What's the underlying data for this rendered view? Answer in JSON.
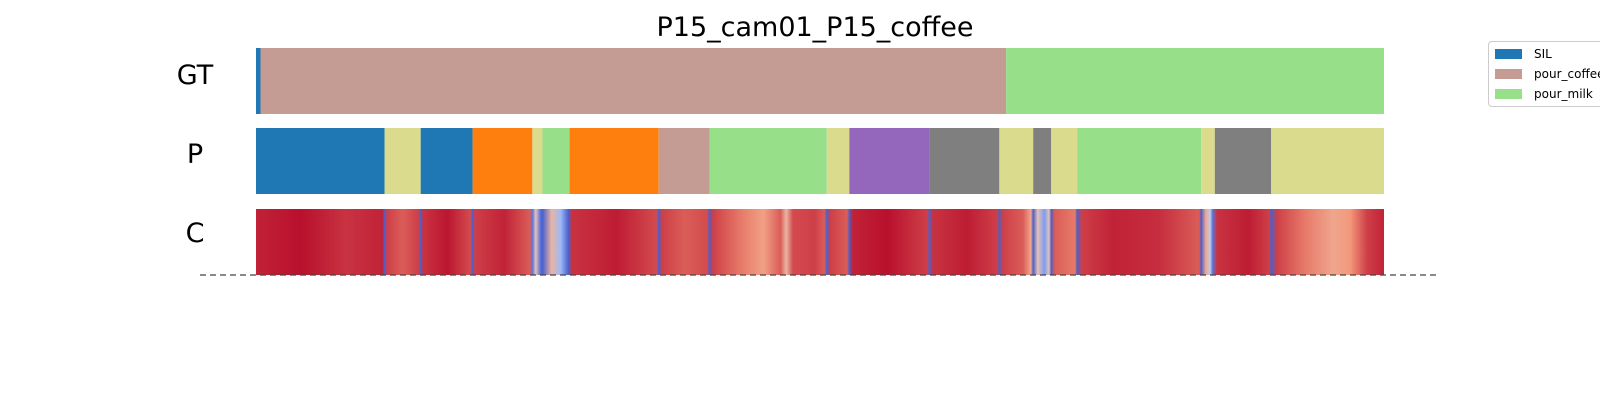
{
  "chart_data": {
    "type": "segmentation",
    "title": "P15_cam01_P15_coffee",
    "total_frames": 1000,
    "rows": [
      {
        "label": "GT",
        "kind": "segments",
        "segments": [
          {
            "label": "SIL",
            "start": 0,
            "end": 4
          },
          {
            "label": "pour_coffee",
            "start": 4,
            "end": 665
          },
          {
            "label": "pour_milk",
            "start": 665,
            "end": 1000
          }
        ]
      },
      {
        "label": "P",
        "kind": "segments",
        "segments": [
          {
            "label": "SIL",
            "start": 0,
            "end": 114
          },
          {
            "label": "olive",
            "start": 114,
            "end": 146
          },
          {
            "label": "SIL",
            "start": 146,
            "end": 192
          },
          {
            "label": "orange",
            "start": 192,
            "end": 245
          },
          {
            "label": "olive",
            "start": 245,
            "end": 254
          },
          {
            "label": "pour_milk",
            "start": 254,
            "end": 278
          },
          {
            "label": "orange",
            "start": 278,
            "end": 357
          },
          {
            "label": "pour_coffee",
            "start": 357,
            "end": 402
          },
          {
            "label": "pour_milk",
            "start": 402,
            "end": 506
          },
          {
            "label": "olive",
            "start": 506,
            "end": 526
          },
          {
            "label": "purple",
            "start": 526,
            "end": 597
          },
          {
            "label": "gray",
            "start": 597,
            "end": 659
          },
          {
            "label": "olive",
            "start": 659,
            "end": 689
          },
          {
            "label": "gray",
            "start": 689,
            "end": 705
          },
          {
            "label": "olive",
            "start": 705,
            "end": 728
          },
          {
            "label": "pour_milk",
            "start": 728,
            "end": 838
          },
          {
            "label": "olive",
            "start": 838,
            "end": 850
          },
          {
            "label": "gray",
            "start": 850,
            "end": 900
          },
          {
            "label": "olive",
            "start": 900,
            "end": 1000
          }
        ]
      },
      {
        "label": "C",
        "kind": "confidence",
        "confidence_stops": [
          {
            "x": 0,
            "v": 0.95
          },
          {
            "x": 40,
            "v": 0.98
          },
          {
            "x": 80,
            "v": 0.92
          },
          {
            "x": 112,
            "v": 0.95
          },
          {
            "x": 114,
            "v": 0.05
          },
          {
            "x": 116,
            "v": 0.9
          },
          {
            "x": 130,
            "v": 0.85
          },
          {
            "x": 144,
            "v": 0.9
          },
          {
            "x": 146,
            "v": 0.05
          },
          {
            "x": 148,
            "v": 0.92
          },
          {
            "x": 170,
            "v": 0.97
          },
          {
            "x": 190,
            "v": 0.88
          },
          {
            "x": 192,
            "v": 0.05
          },
          {
            "x": 194,
            "v": 0.9
          },
          {
            "x": 220,
            "v": 0.95
          },
          {
            "x": 243,
            "v": 0.85
          },
          {
            "x": 245,
            "v": 0.1
          },
          {
            "x": 248,
            "v": 0.6
          },
          {
            "x": 252,
            "v": 0.1
          },
          {
            "x": 254,
            "v": 0.05
          },
          {
            "x": 262,
            "v": 0.65
          },
          {
            "x": 270,
            "v": 0.3
          },
          {
            "x": 277,
            "v": 0.05
          },
          {
            "x": 280,
            "v": 0.92
          },
          {
            "x": 320,
            "v": 0.96
          },
          {
            "x": 355,
            "v": 0.88
          },
          {
            "x": 357,
            "v": 0.05
          },
          {
            "x": 360,
            "v": 0.9
          },
          {
            "x": 380,
            "v": 0.85
          },
          {
            "x": 400,
            "v": 0.88
          },
          {
            "x": 402,
            "v": 0.05
          },
          {
            "x": 405,
            "v": 0.9
          },
          {
            "x": 430,
            "v": 0.8
          },
          {
            "x": 450,
            "v": 0.72
          },
          {
            "x": 465,
            "v": 0.85
          },
          {
            "x": 470,
            "v": 0.65
          },
          {
            "x": 476,
            "v": 0.88
          },
          {
            "x": 495,
            "v": 0.9
          },
          {
            "x": 504,
            "v": 0.85
          },
          {
            "x": 506,
            "v": 0.05
          },
          {
            "x": 509,
            "v": 0.9
          },
          {
            "x": 524,
            "v": 0.85
          },
          {
            "x": 526,
            "v": 0.05
          },
          {
            "x": 529,
            "v": 0.95
          },
          {
            "x": 560,
            "v": 0.98
          },
          {
            "x": 595,
            "v": 0.9
          },
          {
            "x": 597,
            "v": 0.05
          },
          {
            "x": 600,
            "v": 0.92
          },
          {
            "x": 630,
            "v": 0.96
          },
          {
            "x": 657,
            "v": 0.9
          },
          {
            "x": 659,
            "v": 0.05
          },
          {
            "x": 662,
            "v": 0.9
          },
          {
            "x": 680,
            "v": 0.85
          },
          {
            "x": 687,
            "v": 0.7
          },
          {
            "x": 689,
            "v": 0.05
          },
          {
            "x": 693,
            "v": 0.6
          },
          {
            "x": 699,
            "v": 0.2
          },
          {
            "x": 703,
            "v": 0.6
          },
          {
            "x": 705,
            "v": 0.05
          },
          {
            "x": 708,
            "v": 0.85
          },
          {
            "x": 726,
            "v": 0.8
          },
          {
            "x": 728,
            "v": 0.05
          },
          {
            "x": 732,
            "v": 0.9
          },
          {
            "x": 760,
            "v": 0.95
          },
          {
            "x": 800,
            "v": 0.93
          },
          {
            "x": 836,
            "v": 0.85
          },
          {
            "x": 838,
            "v": 0.05
          },
          {
            "x": 842,
            "v": 0.7
          },
          {
            "x": 846,
            "v": 0.4
          },
          {
            "x": 848,
            "v": 0.1
          },
          {
            "x": 852,
            "v": 0.92
          },
          {
            "x": 880,
            "v": 0.96
          },
          {
            "x": 898,
            "v": 0.9
          },
          {
            "x": 900,
            "v": 0.05
          },
          {
            "x": 905,
            "v": 0.9
          },
          {
            "x": 930,
            "v": 0.8
          },
          {
            "x": 955,
            "v": 0.7
          },
          {
            "x": 970,
            "v": 0.75
          },
          {
            "x": 985,
            "v": 0.9
          },
          {
            "x": 1000,
            "v": 0.95
          }
        ]
      }
    ],
    "legend": [
      {
        "label": "SIL",
        "color": "#1f77b4"
      },
      {
        "label": "pour_coffee",
        "color": "#c49c94"
      },
      {
        "label": "pour_milk",
        "color": "#98df8a"
      }
    ],
    "extra_colors": {
      "olive": "#dbdb8d",
      "orange": "#ff7f0e",
      "purple": "#9467bd",
      "gray": "#7f7f7f"
    },
    "confidence_colormap": "coolwarm",
    "legend_placement": "top-right"
  }
}
